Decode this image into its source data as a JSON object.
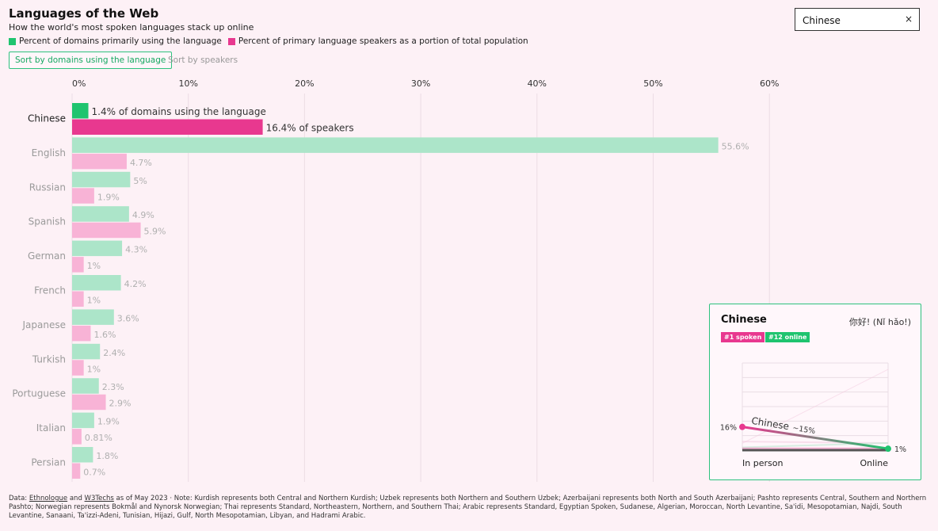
{
  "header": {
    "title": "Languages of the Web",
    "subtitle": "How the world's most spoken languages stack up online"
  },
  "legend": {
    "domains_label": "Percent of domains primarily using the language",
    "speakers_label": "Percent of primary language speakers as a portion of total population",
    "domains_color": "#1fc46f",
    "speakers_color": "#e8388f"
  },
  "controls": {
    "sort_domains_label": "Sort by domains using the language",
    "sort_speakers_label": "Sort by speakers"
  },
  "search": {
    "value": "Chinese",
    "close_icon": "×"
  },
  "colors": {
    "domains_dim": "#ace5c9",
    "speakers_dim": "#f8b3d6",
    "domains_active": "#1fc46f",
    "speakers_active": "#e8388f",
    "background": "#fdf1f6"
  },
  "chart_data": {
    "type": "bar",
    "orientation": "horizontal",
    "highlighted": "Chinese",
    "categories": [
      "Chinese",
      "English",
      "Russian",
      "Spanish",
      "German",
      "French",
      "Japanese",
      "Turkish",
      "Portuguese",
      "Italian",
      "Persian"
    ],
    "series": [
      {
        "name": "Percent of domains primarily using the language",
        "values": [
          1.4,
          55.6,
          5,
          4.9,
          4.3,
          4.2,
          3.6,
          2.4,
          2.3,
          1.9,
          1.8
        ]
      },
      {
        "name": "Percent of primary language speakers as a portion of total population",
        "values": [
          16.4,
          4.7,
          1.9,
          5.9,
          1,
          1,
          1.6,
          1,
          2.9,
          0.81,
          0.7
        ]
      }
    ],
    "value_labels": {
      "domains": [
        "1.4% of domains using the language",
        "55.6%",
        "5%",
        "4.9%",
        "4.3%",
        "4.2%",
        "3.6%",
        "2.4%",
        "2.3%",
        "1.9%",
        "1.8%"
      ],
      "speakers": [
        "16.4% of speakers",
        "4.7%",
        "1.9%",
        "5.9%",
        "1%",
        "1%",
        "1.6%",
        "1%",
        "2.9%",
        "0.81%",
        "0.7%"
      ]
    },
    "xticks": [
      0,
      10,
      20,
      30,
      40,
      50,
      60
    ],
    "xtick_labels": [
      "0%",
      "10%",
      "20%",
      "30%",
      "40%",
      "50%",
      "60%"
    ],
    "xlim": [
      0,
      60
    ],
    "grid": true,
    "xaxis_position": "top"
  },
  "detail_card": {
    "language": "Chinese",
    "greeting": "你好! (Nǐ hǎo!)",
    "spoken_rank": "#1 spoken",
    "online_rank": "#12 online",
    "slope": {
      "in_person_label": "In person",
      "online_label": "Online",
      "in_person_value": 16,
      "online_value": 1,
      "in_person_text": "16%",
      "online_text": "1%",
      "series_label": "Chinese",
      "change_text": "~15%"
    }
  },
  "footer": {
    "prefix": "Data: ",
    "source1": "Ethnologue",
    "and": " and ",
    "source2": "W3Techs",
    "note": " as of May 2023 · Note: Kurdish represents both Central and Northern Kurdish; Uzbek represents both Northern and Southern Uzbek; Azerbaijani represents both North and South Azerbaijani; Pashto represents Central, Southern and Northern Pashto; Norwegian represents Bokmål and Nynorsk Norwegian; Thai represents Standard, Northeastern, Northern, and Southern Thai; Arabic represents Standard, Egyptian Spoken, Sudanese, Algerian, Moroccan, North Levantine, Sa'idi, Mesopotamian, Najdi, South Levantine, Sanaani, Ta'izzi-Adeni, Tunisian, Hijazi, Gulf, North Mesopotamian, Libyan, and Hadrami Arabic."
  }
}
